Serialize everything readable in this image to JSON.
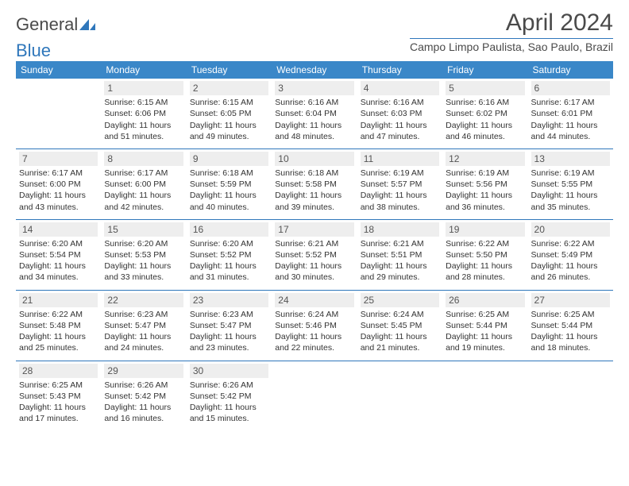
{
  "logo": {
    "text1": "General",
    "text2": "Blue"
  },
  "title": "April 2024",
  "location": "Campo Limpo Paulista, Sao Paulo, Brazil",
  "weekdays": [
    "Sunday",
    "Monday",
    "Tuesday",
    "Wednesday",
    "Thursday",
    "Friday",
    "Saturday"
  ],
  "header_bg": "#3a87c8",
  "header_fg": "#ffffff",
  "rule_color": "#2f77bb",
  "daynum_bg": "#eeeeee",
  "text_color": "#333333",
  "weeks": [
    [
      {
        "n": "",
        "l1": "",
        "l2": "",
        "l3": "",
        "l4": "",
        "empty": true
      },
      {
        "n": "1",
        "l1": "Sunrise: 6:15 AM",
        "l2": "Sunset: 6:06 PM",
        "l3": "Daylight: 11 hours",
        "l4": "and 51 minutes."
      },
      {
        "n": "2",
        "l1": "Sunrise: 6:15 AM",
        "l2": "Sunset: 6:05 PM",
        "l3": "Daylight: 11 hours",
        "l4": "and 49 minutes."
      },
      {
        "n": "3",
        "l1": "Sunrise: 6:16 AM",
        "l2": "Sunset: 6:04 PM",
        "l3": "Daylight: 11 hours",
        "l4": "and 48 minutes."
      },
      {
        "n": "4",
        "l1": "Sunrise: 6:16 AM",
        "l2": "Sunset: 6:03 PM",
        "l3": "Daylight: 11 hours",
        "l4": "and 47 minutes."
      },
      {
        "n": "5",
        "l1": "Sunrise: 6:16 AM",
        "l2": "Sunset: 6:02 PM",
        "l3": "Daylight: 11 hours",
        "l4": "and 46 minutes."
      },
      {
        "n": "6",
        "l1": "Sunrise: 6:17 AM",
        "l2": "Sunset: 6:01 PM",
        "l3": "Daylight: 11 hours",
        "l4": "and 44 minutes."
      }
    ],
    [
      {
        "n": "7",
        "l1": "Sunrise: 6:17 AM",
        "l2": "Sunset: 6:00 PM",
        "l3": "Daylight: 11 hours",
        "l4": "and 43 minutes."
      },
      {
        "n": "8",
        "l1": "Sunrise: 6:17 AM",
        "l2": "Sunset: 6:00 PM",
        "l3": "Daylight: 11 hours",
        "l4": "and 42 minutes."
      },
      {
        "n": "9",
        "l1": "Sunrise: 6:18 AM",
        "l2": "Sunset: 5:59 PM",
        "l3": "Daylight: 11 hours",
        "l4": "and 40 minutes."
      },
      {
        "n": "10",
        "l1": "Sunrise: 6:18 AM",
        "l2": "Sunset: 5:58 PM",
        "l3": "Daylight: 11 hours",
        "l4": "and 39 minutes."
      },
      {
        "n": "11",
        "l1": "Sunrise: 6:19 AM",
        "l2": "Sunset: 5:57 PM",
        "l3": "Daylight: 11 hours",
        "l4": "and 38 minutes."
      },
      {
        "n": "12",
        "l1": "Sunrise: 6:19 AM",
        "l2": "Sunset: 5:56 PM",
        "l3": "Daylight: 11 hours",
        "l4": "and 36 minutes."
      },
      {
        "n": "13",
        "l1": "Sunrise: 6:19 AM",
        "l2": "Sunset: 5:55 PM",
        "l3": "Daylight: 11 hours",
        "l4": "and 35 minutes."
      }
    ],
    [
      {
        "n": "14",
        "l1": "Sunrise: 6:20 AM",
        "l2": "Sunset: 5:54 PM",
        "l3": "Daylight: 11 hours",
        "l4": "and 34 minutes."
      },
      {
        "n": "15",
        "l1": "Sunrise: 6:20 AM",
        "l2": "Sunset: 5:53 PM",
        "l3": "Daylight: 11 hours",
        "l4": "and 33 minutes."
      },
      {
        "n": "16",
        "l1": "Sunrise: 6:20 AM",
        "l2": "Sunset: 5:52 PM",
        "l3": "Daylight: 11 hours",
        "l4": "and 31 minutes."
      },
      {
        "n": "17",
        "l1": "Sunrise: 6:21 AM",
        "l2": "Sunset: 5:52 PM",
        "l3": "Daylight: 11 hours",
        "l4": "and 30 minutes."
      },
      {
        "n": "18",
        "l1": "Sunrise: 6:21 AM",
        "l2": "Sunset: 5:51 PM",
        "l3": "Daylight: 11 hours",
        "l4": "and 29 minutes."
      },
      {
        "n": "19",
        "l1": "Sunrise: 6:22 AM",
        "l2": "Sunset: 5:50 PM",
        "l3": "Daylight: 11 hours",
        "l4": "and 28 minutes."
      },
      {
        "n": "20",
        "l1": "Sunrise: 6:22 AM",
        "l2": "Sunset: 5:49 PM",
        "l3": "Daylight: 11 hours",
        "l4": "and 26 minutes."
      }
    ],
    [
      {
        "n": "21",
        "l1": "Sunrise: 6:22 AM",
        "l2": "Sunset: 5:48 PM",
        "l3": "Daylight: 11 hours",
        "l4": "and 25 minutes."
      },
      {
        "n": "22",
        "l1": "Sunrise: 6:23 AM",
        "l2": "Sunset: 5:47 PM",
        "l3": "Daylight: 11 hours",
        "l4": "and 24 minutes."
      },
      {
        "n": "23",
        "l1": "Sunrise: 6:23 AM",
        "l2": "Sunset: 5:47 PM",
        "l3": "Daylight: 11 hours",
        "l4": "and 23 minutes."
      },
      {
        "n": "24",
        "l1": "Sunrise: 6:24 AM",
        "l2": "Sunset: 5:46 PM",
        "l3": "Daylight: 11 hours",
        "l4": "and 22 minutes."
      },
      {
        "n": "25",
        "l1": "Sunrise: 6:24 AM",
        "l2": "Sunset: 5:45 PM",
        "l3": "Daylight: 11 hours",
        "l4": "and 21 minutes."
      },
      {
        "n": "26",
        "l1": "Sunrise: 6:25 AM",
        "l2": "Sunset: 5:44 PM",
        "l3": "Daylight: 11 hours",
        "l4": "and 19 minutes."
      },
      {
        "n": "27",
        "l1": "Sunrise: 6:25 AM",
        "l2": "Sunset: 5:44 PM",
        "l3": "Daylight: 11 hours",
        "l4": "and 18 minutes."
      }
    ],
    [
      {
        "n": "28",
        "l1": "Sunrise: 6:25 AM",
        "l2": "Sunset: 5:43 PM",
        "l3": "Daylight: 11 hours",
        "l4": "and 17 minutes."
      },
      {
        "n": "29",
        "l1": "Sunrise: 6:26 AM",
        "l2": "Sunset: 5:42 PM",
        "l3": "Daylight: 11 hours",
        "l4": "and 16 minutes."
      },
      {
        "n": "30",
        "l1": "Sunrise: 6:26 AM",
        "l2": "Sunset: 5:42 PM",
        "l3": "Daylight: 11 hours",
        "l4": "and 15 minutes."
      },
      {
        "n": "",
        "l1": "",
        "l2": "",
        "l3": "",
        "l4": "",
        "empty": true
      },
      {
        "n": "",
        "l1": "",
        "l2": "",
        "l3": "",
        "l4": "",
        "empty": true
      },
      {
        "n": "",
        "l1": "",
        "l2": "",
        "l3": "",
        "l4": "",
        "empty": true
      },
      {
        "n": "",
        "l1": "",
        "l2": "",
        "l3": "",
        "l4": "",
        "empty": true
      }
    ]
  ]
}
